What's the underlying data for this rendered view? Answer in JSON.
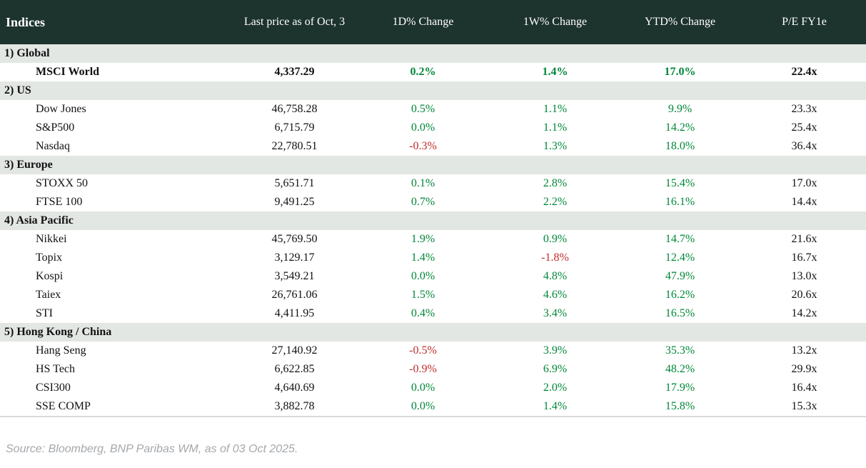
{
  "colors": {
    "header_bg": "#1d332d",
    "section_bg": "#e3e7e4",
    "positive": "#008738",
    "negative": "#c02b2b",
    "source_text": "#a4a8ac"
  },
  "chart_data": {
    "type": "table",
    "title": "Indices",
    "columns": [
      "Last price as of Oct, 3",
      "1D% Change",
      "1W% Change",
      "YTD% Change",
      "P/E FY1e"
    ],
    "sections": [
      {
        "label": "1) Global",
        "rows": [
          {
            "name": "MSCI World",
            "price": "4,337.29",
            "d1": "0.2%",
            "w1": "1.4%",
            "ytd": "17.0%",
            "pe": "22.4x",
            "bold": true
          }
        ]
      },
      {
        "label": "2) US",
        "rows": [
          {
            "name": "Dow Jones",
            "price": "46,758.28",
            "d1": "0.5%",
            "w1": "1.1%",
            "ytd": "9.9%",
            "pe": "23.3x",
            "bold": false
          },
          {
            "name": "S&P500",
            "price": "6,715.79",
            "d1": "0.0%",
            "w1": "1.1%",
            "ytd": "14.2%",
            "pe": "25.4x",
            "bold": false
          },
          {
            "name": "Nasdaq",
            "price": "22,780.51",
            "d1": "-0.3%",
            "w1": "1.3%",
            "ytd": "18.0%",
            "pe": "36.4x",
            "bold": false
          }
        ]
      },
      {
        "label": "3) Europe",
        "rows": [
          {
            "name": "STOXX 50",
            "price": "5,651.71",
            "d1": "0.1%",
            "w1": "2.8%",
            "ytd": "15.4%",
            "pe": "17.0x",
            "bold": false
          },
          {
            "name": "FTSE 100",
            "price": "9,491.25",
            "d1": "0.7%",
            "w1": "2.2%",
            "ytd": "16.1%",
            "pe": "14.4x",
            "bold": false
          }
        ]
      },
      {
        "label": "4) Asia Pacific",
        "rows": [
          {
            "name": "Nikkei",
            "price": "45,769.50",
            "d1": "1.9%",
            "w1": "0.9%",
            "ytd": "14.7%",
            "pe": "21.6x",
            "bold": false
          },
          {
            "name": "Topix",
            "price": "3,129.17",
            "d1": "1.4%",
            "w1": "-1.8%",
            "ytd": "12.4%",
            "pe": "16.7x",
            "bold": false
          },
          {
            "name": "Kospi",
            "price": "3,549.21",
            "d1": "0.0%",
            "w1": "4.8%",
            "ytd": "47.9%",
            "pe": "13.0x",
            "bold": false
          },
          {
            "name": "Taiex",
            "price": "26,761.06",
            "d1": "1.5%",
            "w1": "4.6%",
            "ytd": "16.2%",
            "pe": "20.6x",
            "bold": false
          },
          {
            "name": "STI",
            "price": "4,411.95",
            "d1": "0.4%",
            "w1": "3.4%",
            "ytd": "16.5%",
            "pe": "14.2x",
            "bold": false
          }
        ]
      },
      {
        "label": "5) Hong Kong / China",
        "rows": [
          {
            "name": "Hang Seng",
            "price": "27,140.92",
            "d1": "-0.5%",
            "w1": "3.9%",
            "ytd": "35.3%",
            "pe": "13.2x",
            "bold": false
          },
          {
            "name": "HS Tech",
            "price": "6,622.85",
            "d1": "-0.9%",
            "w1": "6.9%",
            "ytd": "48.2%",
            "pe": "29.9x",
            "bold": false
          },
          {
            "name": "CSI300",
            "price": "4,640.69",
            "d1": "0.0%",
            "w1": "2.0%",
            "ytd": "17.9%",
            "pe": "16.4x",
            "bold": false
          },
          {
            "name": "SSE COMP",
            "price": "3,882.78",
            "d1": "0.0%",
            "w1": "1.4%",
            "ytd": "15.8%",
            "pe": "15.3x",
            "bold": false
          }
        ]
      }
    ]
  },
  "footer": {
    "source": "Source: Bloomberg, BNP Paribas WM, as of 03 Oct 2025."
  }
}
